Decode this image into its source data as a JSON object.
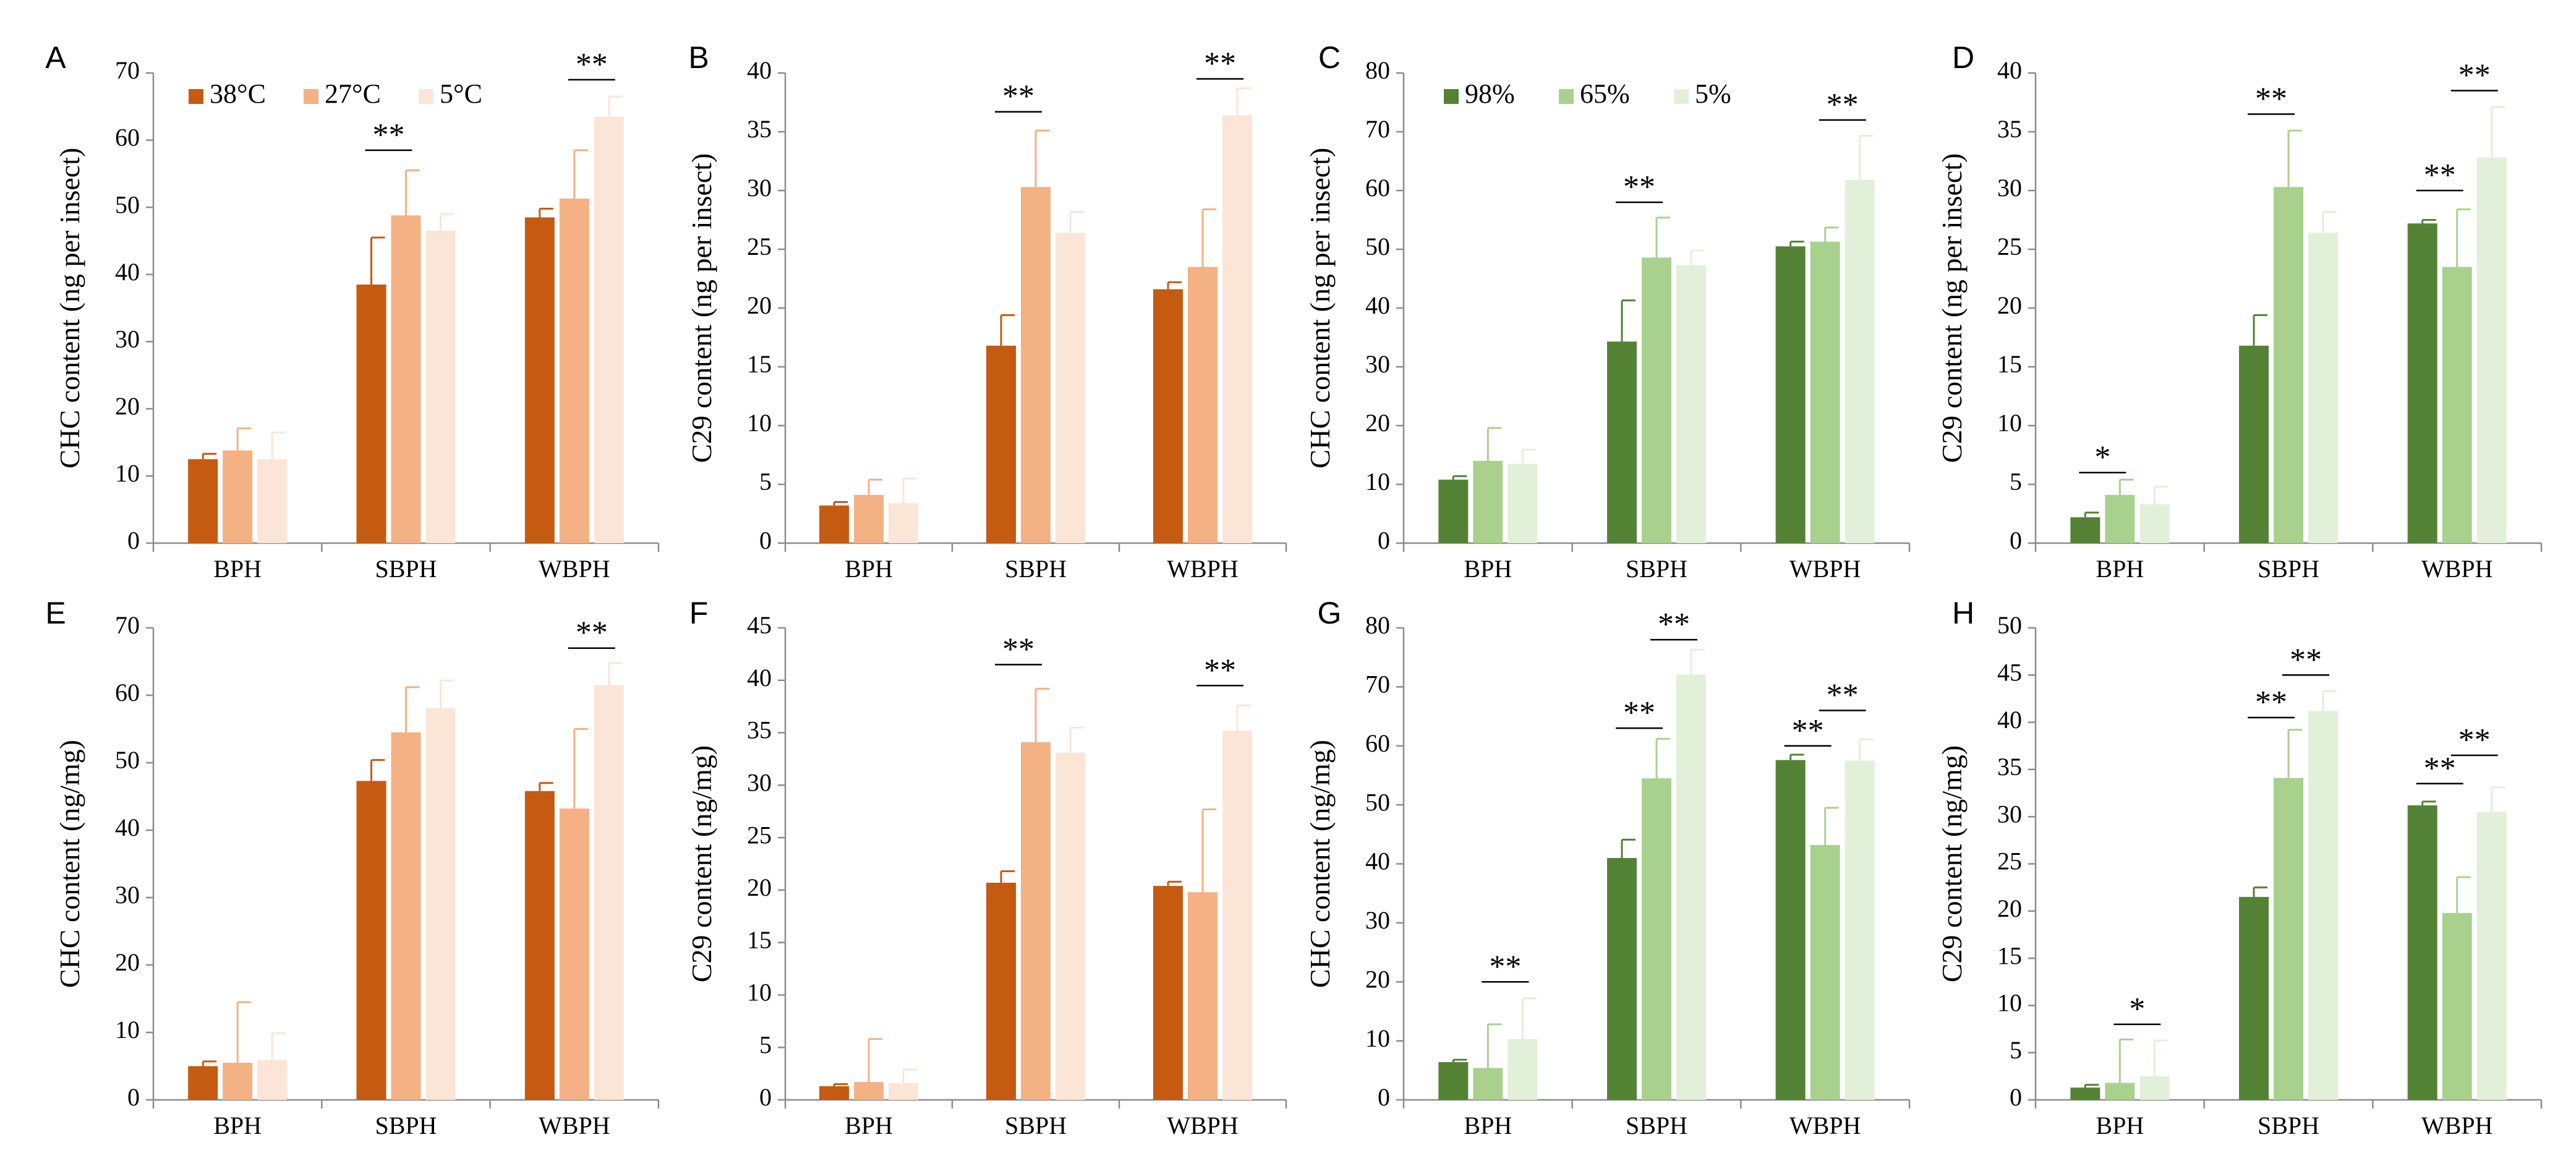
{
  "colors": {
    "temp": [
      "#c55a11",
      "#f4b183",
      "#fbe5d6"
    ],
    "hum": [
      "#548235",
      "#a9d18e",
      "#e2f0d9"
    ],
    "axis": "#8c8c8c"
  },
  "legends": {
    "temp": [
      "38°C",
      "27°C",
      "5°C"
    ],
    "hum": [
      "98%",
      "65%",
      "5%"
    ]
  },
  "chart_data": [
    {
      "id": "A",
      "type": "bar",
      "ylabel": "CHC content (ng per insect)",
      "ylim": [
        0,
        70
      ],
      "yticks": [
        0,
        10,
        20,
        30,
        40,
        50,
        60,
        70
      ],
      "categories": [
        "BPH",
        "SBPH",
        "WBPH"
      ],
      "palette": "temp",
      "legend": true,
      "series": [
        {
          "name": "38°C",
          "values": [
            12.5,
            38.5,
            48.5
          ],
          "errors": [
            0.8,
            7.0,
            1.3
          ]
        },
        {
          "name": "27°C",
          "values": [
            13.8,
            48.8,
            51.3
          ],
          "errors": [
            3.3,
            6.7,
            7.2
          ]
        },
        {
          "name": "5°C",
          "values": [
            12.5,
            46.5,
            63.5
          ],
          "errors": [
            4.0,
            2.5,
            3.0
          ]
        }
      ],
      "significance": [
        {
          "cat": 1,
          "from": 0,
          "to": 1,
          "label": "**",
          "y": 58.5
        },
        {
          "cat": 2,
          "from": 1,
          "to": 2,
          "label": "**",
          "y": 69
        }
      ]
    },
    {
      "id": "B",
      "type": "bar",
      "ylabel": "C29 content (ng per insect)",
      "ylim": [
        0,
        40
      ],
      "yticks": [
        0,
        5,
        10,
        15,
        20,
        25,
        30,
        35,
        40
      ],
      "categories": [
        "BPH",
        "SBPH",
        "WBPH"
      ],
      "palette": "temp",
      "legend": false,
      "series": [
        {
          "name": "38°C",
          "values": [
            3.2,
            16.8,
            21.6
          ],
          "errors": [
            0.3,
            2.6,
            0.6
          ]
        },
        {
          "name": "27°C",
          "values": [
            4.1,
            30.3,
            23.5
          ],
          "errors": [
            1.3,
            4.8,
            4.9
          ]
        },
        {
          "name": "5°C",
          "values": [
            3.4,
            26.4,
            36.4
          ],
          "errors": [
            2.1,
            1.8,
            2.3
          ]
        }
      ],
      "significance": [
        {
          "cat": 1,
          "from": 0,
          "to": 1,
          "label": "**",
          "y": 36.7
        },
        {
          "cat": 2,
          "from": 1,
          "to": 2,
          "label": "**",
          "y": 39.5
        }
      ]
    },
    {
      "id": "C",
      "type": "bar",
      "ylabel": "CHC content (ng per insect)",
      "ylim": [
        0,
        80
      ],
      "yticks": [
        0,
        10,
        20,
        30,
        40,
        50,
        60,
        70,
        80
      ],
      "categories": [
        "BPH",
        "SBPH",
        "WBPH"
      ],
      "palette": "hum",
      "legend": true,
      "series": [
        {
          "name": "98%",
          "values": [
            10.8,
            34.3,
            50.5
          ],
          "errors": [
            0.6,
            7.0,
            0.8
          ]
        },
        {
          "name": "65%",
          "values": [
            14.0,
            48.6,
            51.3
          ],
          "errors": [
            5.6,
            6.8,
            2.4
          ]
        },
        {
          "name": "5%",
          "values": [
            13.5,
            47.3,
            61.8
          ],
          "errors": [
            2.4,
            2.5,
            7.5
          ]
        }
      ],
      "significance": [
        {
          "cat": 1,
          "from": 0,
          "to": 1,
          "label": "**",
          "y": 58
        },
        {
          "cat": 2,
          "from": 1,
          "to": 2,
          "label": "**",
          "y": 72
        }
      ]
    },
    {
      "id": "D",
      "type": "bar",
      "ylabel": "C29 content (ng per insect)",
      "ylim": [
        0,
        40
      ],
      "yticks": [
        0,
        5,
        10,
        15,
        20,
        25,
        30,
        35,
        40
      ],
      "categories": [
        "BPH",
        "SBPH",
        "WBPH"
      ],
      "palette": "hum",
      "legend": false,
      "series": [
        {
          "name": "98%",
          "values": [
            2.2,
            16.8,
            27.2
          ],
          "errors": [
            0.4,
            2.6,
            0.3
          ]
        },
        {
          "name": "65%",
          "values": [
            4.1,
            30.3,
            23.5
          ],
          "errors": [
            1.3,
            4.8,
            4.9
          ]
        },
        {
          "name": "5%",
          "values": [
            3.3,
            26.4,
            32.8
          ],
          "errors": [
            1.5,
            1.8,
            4.3
          ]
        }
      ],
      "significance": [
        {
          "cat": 0,
          "from": 0,
          "to": 1,
          "label": "*",
          "y": 6.0
        },
        {
          "cat": 1,
          "from": 0,
          "to": 1,
          "label": "**",
          "y": 36.5
        },
        {
          "cat": 2,
          "from": 0,
          "to": 1,
          "label": "**",
          "y": 30.0
        },
        {
          "cat": 2,
          "from": 1,
          "to": 2,
          "label": "**",
          "y": 38.5
        }
      ]
    },
    {
      "id": "E",
      "type": "bar",
      "ylabel": "CHC content (ng/mg)",
      "ylim": [
        0,
        70
      ],
      "yticks": [
        0,
        10,
        20,
        30,
        40,
        50,
        60,
        70
      ],
      "categories": [
        "BPH",
        "SBPH",
        "WBPH"
      ],
      "palette": "temp",
      "legend": false,
      "series": [
        {
          "name": "38°C",
          "values": [
            5.0,
            47.3,
            45.8
          ],
          "errors": [
            0.7,
            3.1,
            1.2
          ]
        },
        {
          "name": "27°C",
          "values": [
            5.5,
            54.5,
            43.2
          ],
          "errors": [
            9.0,
            6.7,
            11.8
          ]
        },
        {
          "name": "5°C",
          "values": [
            5.9,
            58.1,
            61.5
          ],
          "errors": [
            4.0,
            4.1,
            3.3
          ]
        }
      ],
      "significance": [
        {
          "cat": 2,
          "from": 1,
          "to": 2,
          "label": "**",
          "y": 67
        }
      ]
    },
    {
      "id": "F",
      "type": "bar",
      "ylabel": "C29 content (ng/mg)",
      "ylim": [
        0,
        45
      ],
      "yticks": [
        0,
        5,
        10,
        15,
        20,
        25,
        30,
        35,
        40,
        45
      ],
      "categories": [
        "BPH",
        "SBPH",
        "WBPH"
      ],
      "palette": "temp",
      "legend": false,
      "series": [
        {
          "name": "38°C",
          "values": [
            1.3,
            20.7,
            20.4
          ],
          "errors": [
            0.2,
            1.1,
            0.4
          ]
        },
        {
          "name": "27°C",
          "values": [
            1.7,
            34.1,
            19.8
          ],
          "errors": [
            4.1,
            5.1,
            7.9
          ]
        },
        {
          "name": "5°C",
          "values": [
            1.6,
            33.1,
            35.2
          ],
          "errors": [
            1.3,
            2.4,
            2.4
          ]
        }
      ],
      "significance": [
        {
          "cat": 1,
          "from": 0,
          "to": 1,
          "label": "**",
          "y": 41.5
        },
        {
          "cat": 2,
          "from": 1,
          "to": 2,
          "label": "**",
          "y": 39.5
        }
      ]
    },
    {
      "id": "G",
      "type": "bar",
      "ylabel": "CHC content (ng/mg)",
      "ylim": [
        0,
        80
      ],
      "yticks": [
        0,
        10,
        20,
        30,
        40,
        50,
        60,
        70,
        80
      ],
      "categories": [
        "BPH",
        "SBPH",
        "WBPH"
      ],
      "palette": "hum",
      "legend": false,
      "series": [
        {
          "name": "98%",
          "values": [
            6.4,
            41.0,
            57.6
          ],
          "errors": [
            0.4,
            3.1,
            0.9
          ]
        },
        {
          "name": "65%",
          "values": [
            5.4,
            54.5,
            43.2
          ],
          "errors": [
            7.4,
            6.7,
            6.3
          ]
        },
        {
          "name": "5%",
          "values": [
            10.3,
            72.1,
            57.5
          ],
          "errors": [
            6.9,
            4.2,
            3.6
          ]
        }
      ],
      "significance": [
        {
          "cat": 0,
          "from": 1,
          "to": 2,
          "label": "**",
          "y": 20
        },
        {
          "cat": 1,
          "from": 0,
          "to": 1,
          "label": "**",
          "y": 63
        },
        {
          "cat": 1,
          "from": 1,
          "to": 2,
          "label": "**",
          "y": 78
        },
        {
          "cat": 2,
          "from": 0,
          "to": 1,
          "label": "**",
          "y": 60
        },
        {
          "cat": 2,
          "from": 1,
          "to": 2,
          "label": "**",
          "y": 66
        }
      ]
    },
    {
      "id": "H",
      "type": "bar",
      "ylabel": "C29 content (ng/mg)",
      "ylim": [
        0,
        50
      ],
      "yticks": [
        0,
        5,
        10,
        15,
        20,
        25,
        30,
        35,
        40,
        45,
        50
      ],
      "categories": [
        "BPH",
        "SBPH",
        "WBPH"
      ],
      "palette": "hum",
      "legend": false,
      "series": [
        {
          "name": "98%",
          "values": [
            1.3,
            21.5,
            31.2
          ],
          "errors": [
            0.3,
            1.0,
            0.4
          ]
        },
        {
          "name": "65%",
          "values": [
            1.8,
            34.1,
            19.8
          ],
          "errors": [
            4.6,
            5.1,
            3.8
          ]
        },
        {
          "name": "5%",
          "values": [
            2.5,
            41.2,
            30.5
          ],
          "errors": [
            3.8,
            2.1,
            2.6
          ]
        }
      ],
      "significance": [
        {
          "cat": 0,
          "from": 1,
          "to": 2,
          "label": "*",
          "y": 8.0
        },
        {
          "cat": 1,
          "from": 0,
          "to": 1,
          "label": "**",
          "y": 40.5
        },
        {
          "cat": 1,
          "from": 1,
          "to": 2,
          "label": "**",
          "y": 45.0
        },
        {
          "cat": 2,
          "from": 0,
          "to": 1,
          "label": "**",
          "y": 33.5
        },
        {
          "cat": 2,
          "from": 1,
          "to": 2,
          "label": "**",
          "y": 36.5
        }
      ]
    }
  ]
}
